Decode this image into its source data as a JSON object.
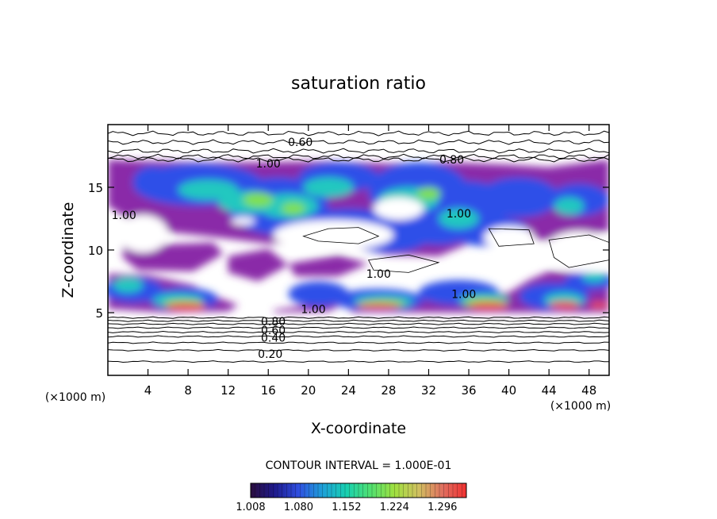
{
  "chart_data": {
    "type": "heatmap",
    "title": "saturation ratio",
    "xlabel": "X-coordinate",
    "ylabel": "Z-coordinate",
    "x_unit_label": "(×1000 m)",
    "x_unit_label_right": "(×1000 m)",
    "xlim": [
      0,
      50
    ],
    "ylim": [
      0,
      20
    ],
    "x_ticks": [
      4,
      8,
      12,
      16,
      20,
      24,
      28,
      32,
      36,
      40,
      44,
      48
    ],
    "y_ticks": [
      5,
      10,
      15
    ],
    "grid": false,
    "contour_interval_text": "CONTOUR INTERVAL = 1.000E-01",
    "contour_labels": [
      {
        "text": "0.60",
        "x": 19.2,
        "y": 18.6
      },
      {
        "text": "0.80",
        "x": 34.3,
        "y": 17.2
      },
      {
        "text": "1.00",
        "x": 16.0,
        "y": 16.9
      },
      {
        "text": "1.00",
        "x": 1.6,
        "y": 12.8
      },
      {
        "text": "1.00",
        "x": 35.0,
        "y": 12.9
      },
      {
        "text": "1.00",
        "x": 27.0,
        "y": 8.1
      },
      {
        "text": "1.00",
        "x": 35.5,
        "y": 6.5
      },
      {
        "text": "1.00",
        "x": 20.5,
        "y": 5.3
      },
      {
        "text": "0.80",
        "x": 16.5,
        "y": 4.3
      },
      {
        "text": "0.60",
        "x": 16.5,
        "y": 3.6
      },
      {
        "text": "0.40",
        "x": 16.5,
        "y": 3.0
      },
      {
        "text": "0.20",
        "x": 16.2,
        "y": 1.7
      }
    ],
    "colorbar": {
      "tick_labels": [
        "1.008",
        "1.080",
        "1.152",
        "1.224",
        "1.296"
      ],
      "range": [
        1.008,
        1.332
      ],
      "colors": [
        "#2a0d3d",
        "#1e1a8c",
        "#2f4fe0",
        "#1ea0d8",
        "#18d0b0",
        "#50e070",
        "#a0e040",
        "#d0c060",
        "#e07060",
        "#f03030"
      ]
    },
    "color_fields": {
      "band_upper": {
        "y_range": [
          10.5,
          17.2
        ],
        "description": "saturated cloud layer, values 1.008–1.2"
      },
      "band_lower": {
        "y_range": [
          5.2,
          8.0
        ],
        "description": "saturated layer with maxima near 1.3"
      }
    }
  }
}
